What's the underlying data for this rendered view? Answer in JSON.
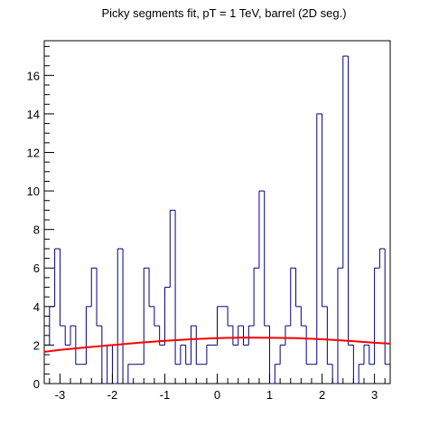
{
  "chart_data": {
    "type": "histogram",
    "title": "Picky segments fit, pT = 1 TeV, barrel (2D seg.)",
    "xlabel": "",
    "ylabel": "",
    "xlim": [
      -3.3,
      3.3
    ],
    "ylim": [
      0,
      17.8
    ],
    "x_ticks": [
      -3,
      -2,
      -1,
      0,
      1,
      2,
      3
    ],
    "y_ticks": [
      0,
      2,
      4,
      6,
      8,
      10,
      12,
      14,
      16
    ],
    "bin_edges": [
      -3.3,
      -3.2,
      -3.1,
      -3.0,
      -2.9,
      -2.8,
      -2.7,
      -2.6,
      -2.5,
      -2.4,
      -2.3,
      -2.2,
      -2.1,
      -2.0,
      -1.9,
      -1.8,
      -1.7,
      -1.6,
      -1.5,
      -1.4,
      -1.3,
      -1.2,
      -1.1,
      -1.0,
      -0.9,
      -0.8,
      -0.7,
      -0.6,
      -0.5,
      -0.4,
      -0.3,
      -0.2,
      -0.1,
      0.0,
      0.1,
      0.2,
      0.3,
      0.4,
      0.5,
      0.6,
      0.7,
      0.8,
      0.9,
      1.0,
      1.1,
      1.2,
      1.3,
      1.4,
      1.5,
      1.6,
      1.7,
      1.8,
      1.9,
      2.0,
      2.1,
      2.2,
      2.3,
      2.4,
      2.5,
      2.6,
      2.7,
      2.8,
      2.9,
      3.0,
      3.1,
      3.2,
      3.3
    ],
    "counts": [
      2,
      4,
      7,
      3,
      2,
      3,
      1,
      1,
      4,
      6,
      3,
      0,
      2,
      0,
      7,
      0,
      1,
      1,
      1,
      6,
      4,
      3,
      2,
      5,
      9,
      1,
      2,
      1,
      3,
      1,
      1,
      2,
      2,
      4,
      4,
      3,
      2,
      3,
      2,
      3,
      6,
      10,
      3,
      0,
      1,
      2,
      3,
      6,
      4,
      3,
      1,
      1,
      14,
      4,
      1,
      0,
      6,
      17,
      2,
      0,
      1,
      2,
      1,
      6,
      7,
      1
    ],
    "fit": {
      "name": "fit",
      "color": "#ff0000",
      "x": [
        -3.3,
        -3.0,
        -2.5,
        -2.0,
        -1.5,
        -1.0,
        -0.5,
        0.0,
        0.5,
        1.0,
        1.5,
        2.0,
        2.5,
        3.0,
        3.3
      ],
      "y": [
        1.65,
        1.75,
        1.88,
        2.0,
        2.12,
        2.22,
        2.3,
        2.36,
        2.39,
        2.38,
        2.36,
        2.3,
        2.22,
        2.12,
        2.07
      ]
    },
    "histogram_color": "#000080",
    "background": "#ffffff",
    "grid": false
  }
}
